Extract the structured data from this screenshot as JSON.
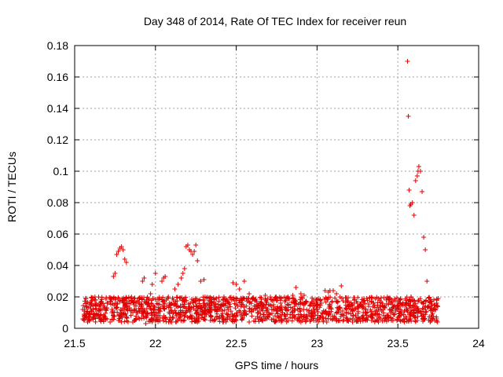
{
  "chart_data": {
    "type": "scatter",
    "title": "Day 348 of 2014, Rate Of TEC Index for receiver reun",
    "xlabel": "GPS time / hours",
    "ylabel": "ROTI / TECUs",
    "xlim": [
      21.5,
      24
    ],
    "ylim": [
      0,
      0.18
    ],
    "xticks": [
      21.5,
      22,
      22.5,
      23,
      23.5,
      24
    ],
    "xtick_labels": [
      "21.5",
      "22",
      "22.5",
      "23",
      "23.5",
      "24"
    ],
    "yticks": [
      0,
      0.02,
      0.04,
      0.06,
      0.08,
      0.1,
      0.12,
      0.14,
      0.16,
      0.18
    ],
    "ytick_labels": [
      "0",
      "0.02",
      "0.04",
      "0.06",
      "0.08",
      "0.1",
      "0.12",
      "0.14",
      "0.16",
      "0.18"
    ],
    "grid": true,
    "marker": "+",
    "color": "#e00000",
    "series": [
      {
        "name": "reun",
        "x": [
          21.55,
          21.56,
          21.57,
          21.58,
          21.6,
          21.62,
          21.63,
          21.65,
          21.66,
          21.68,
          21.7,
          21.72,
          21.73,
          21.74,
          21.75,
          21.76,
          21.77,
          21.78,
          21.79,
          21.8,
          21.81,
          21.82,
          21.84,
          21.86,
          21.88,
          21.9,
          21.92,
          21.93,
          21.95,
          21.96,
          21.97,
          21.98,
          22.0,
          22.02,
          22.04,
          22.05,
          22.06,
          22.08,
          22.1,
          22.12,
          22.14,
          22.16,
          22.17,
          22.18,
          22.19,
          22.2,
          22.21,
          22.22,
          22.23,
          22.24,
          22.25,
          22.26,
          22.28,
          22.3,
          22.32,
          22.35,
          22.38,
          22.4,
          22.42,
          22.45,
          22.48,
          22.5,
          22.52,
          22.55,
          22.58,
          22.6,
          22.62,
          22.65,
          22.68,
          22.7,
          22.72,
          22.75,
          22.78,
          22.8,
          22.82,
          22.85,
          22.87,
          22.9,
          22.92,
          22.95,
          22.98,
          23.0,
          23.02,
          23.05,
          23.07,
          23.08,
          23.1,
          23.12,
          23.15,
          23.18,
          23.2,
          23.22,
          23.25,
          23.28,
          23.3,
          23.32,
          23.35,
          23.38,
          23.4,
          23.42,
          23.45,
          23.48,
          23.5,
          23.52,
          23.54,
          23.555,
          23.56,
          23.565,
          23.57,
          23.575,
          23.58,
          23.59,
          23.6,
          23.61,
          23.62,
          23.625,
          23.63,
          23.64,
          23.65,
          23.66,
          23.67,
          23.68,
          23.69,
          23.7,
          23.72,
          23.74,
          23.75,
          21.55,
          21.58,
          21.62,
          21.66,
          21.7,
          21.74,
          21.78,
          21.82,
          21.86,
          21.9,
          21.94,
          21.98,
          22.02,
          22.06,
          22.1,
          22.14,
          22.18,
          22.22,
          22.26,
          22.3,
          22.34,
          22.38,
          22.42,
          22.46,
          22.5,
          22.54,
          22.58,
          22.62,
          22.66,
          22.7,
          22.74,
          22.78,
          22.82,
          22.86,
          22.9,
          22.94,
          22.98,
          23.02,
          23.06,
          23.1,
          23.14,
          23.18,
          23.22,
          23.26,
          23.3,
          23.34,
          23.38,
          23.42,
          23.46,
          23.5,
          23.54,
          23.58,
          23.62,
          23.66,
          23.7,
          23.74
        ],
        "y": [
          0.012,
          0.008,
          0.016,
          0.01,
          0.014,
          0.009,
          0.018,
          0.011,
          0.015,
          0.008,
          0.013,
          0.017,
          0.01,
          0.033,
          0.035,
          0.047,
          0.049,
          0.051,
          0.052,
          0.05,
          0.044,
          0.042,
          0.013,
          0.01,
          0.016,
          0.011,
          0.03,
          0.032,
          0.009,
          0.018,
          0.022,
          0.028,
          0.035,
          0.012,
          0.03,
          0.032,
          0.033,
          0.02,
          0.011,
          0.025,
          0.028,
          0.032,
          0.035,
          0.038,
          0.052,
          0.053,
          0.05,
          0.049,
          0.047,
          0.049,
          0.053,
          0.043,
          0.03,
          0.031,
          0.012,
          0.016,
          0.011,
          0.014,
          0.018,
          0.012,
          0.029,
          0.028,
          0.025,
          0.03,
          0.022,
          0.019,
          0.014,
          0.016,
          0.021,
          0.015,
          0.012,
          0.011,
          0.014,
          0.017,
          0.02,
          0.021,
          0.026,
          0.022,
          0.021,
          0.009,
          0.012,
          0.015,
          0.018,
          0.024,
          0.023,
          0.024,
          0.024,
          0.022,
          0.027,
          0.012,
          0.015,
          0.011,
          0.016,
          0.013,
          0.01,
          0.014,
          0.016,
          0.012,
          0.011,
          0.013,
          0.017,
          0.009,
          0.012,
          0.015,
          0.011,
          0.016,
          0.17,
          0.135,
          0.088,
          0.078,
          0.079,
          0.08,
          0.072,
          0.094,
          0.097,
          0.1,
          0.103,
          0.1,
          0.087,
          0.058,
          0.05,
          0.03,
          0.014,
          0.017,
          0.012,
          0.016,
          0.019,
          0.006,
          0.004,
          0.007,
          0.005,
          0.006,
          0.008,
          0.005,
          0.007,
          0.004,
          0.006,
          0.003,
          0.005,
          0.006,
          0.007,
          0.004,
          0.006,
          0.005,
          0.007,
          0.004,
          0.006,
          0.005,
          0.007,
          0.004,
          0.006,
          0.005,
          0.007,
          0.004,
          0.006,
          0.005,
          0.007,
          0.004,
          0.006,
          0.005,
          0.007,
          0.004,
          0.006,
          0.005,
          0.007,
          0.004,
          0.006,
          0.005,
          0.007,
          0.004,
          0.006,
          0.005,
          0.007,
          0.004,
          0.006,
          0.005,
          0.007,
          0.004,
          0.006,
          0.005,
          0.007,
          0.004,
          0.006
        ]
      }
    ],
    "dense_band": {
      "description": "dense scatter of background points",
      "x_range": [
        21.55,
        23.75
      ],
      "y_range": [
        0.004,
        0.02
      ]
    }
  }
}
